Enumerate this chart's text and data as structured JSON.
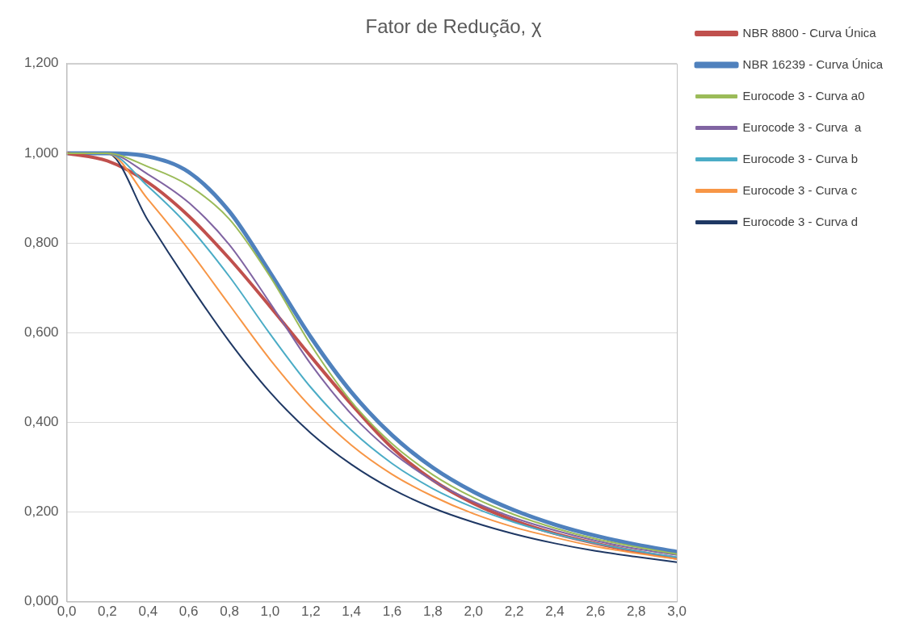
{
  "chart_data": {
    "type": "line",
    "title": "Fator de Redução, χ",
    "x": [
      0,
      0.2,
      0.4,
      0.6,
      0.8,
      1.0,
      1.2,
      1.4,
      1.6,
      1.8,
      2.0,
      2.2,
      2.4,
      2.6,
      2.8,
      3.0
    ],
    "series": [
      {
        "name": "NBR 8800 - Curva Única",
        "color": "#c0504d",
        "values": [
          1.0,
          0.983,
          0.935,
          0.86,
          0.765,
          0.658,
          0.547,
          0.44,
          0.343,
          0.271,
          0.219,
          0.181,
          0.152,
          0.13,
          0.112,
          0.097
        ]
      },
      {
        "name": "NBR 16239 - Curva Única",
        "color": "#4f81bd",
        "values": [
          1.0,
          1.0,
          0.993,
          0.958,
          0.87,
          0.734,
          0.59,
          0.467,
          0.371,
          0.299,
          0.245,
          0.204,
          0.172,
          0.147,
          0.127,
          0.111
        ]
      },
      {
        "name": "Eurocode 3 - Curva a0",
        "color": "#9bbb59",
        "values": [
          1.0,
          1.0,
          0.97,
          0.928,
          0.853,
          0.725,
          0.573,
          0.446,
          0.352,
          0.283,
          0.232,
          0.194,
          0.164,
          0.14,
          0.122,
          0.106
        ]
      },
      {
        "name": "Eurocode 3 - Curva  a",
        "color": "#8064a2",
        "values": [
          1.0,
          1.0,
          0.953,
          0.89,
          0.796,
          0.666,
          0.53,
          0.418,
          0.333,
          0.27,
          0.223,
          0.187,
          0.159,
          0.136,
          0.118,
          0.104
        ]
      },
      {
        "name": "Eurocode 3 - Curva b",
        "color": "#4bacc6",
        "values": [
          1.0,
          1.0,
          0.926,
          0.837,
          0.725,
          0.597,
          0.478,
          0.382,
          0.308,
          0.252,
          0.21,
          0.177,
          0.151,
          0.13,
          0.113,
          0.099
        ]
      },
      {
        "name": "Eurocode 3 - Curva c",
        "color": "#f79646",
        "values": [
          1.0,
          1.0,
          0.897,
          0.785,
          0.662,
          0.54,
          0.434,
          0.349,
          0.284,
          0.235,
          0.196,
          0.166,
          0.143,
          0.123,
          0.108,
          0.095
        ]
      },
      {
        "name": "Eurocode 3 - Curva d",
        "color": "#1f3864",
        "values": [
          1.0,
          1.0,
          0.85,
          0.71,
          0.58,
          0.467,
          0.376,
          0.306,
          0.251,
          0.209,
          0.177,
          0.151,
          0.13,
          0.113,
          0.1,
          0.088
        ]
      }
    ],
    "xlim": [
      0,
      3.0
    ],
    "xticks": [
      {
        "value": 0,
        "label": "0,0"
      },
      {
        "value": 0.2,
        "label": "0,2"
      },
      {
        "value": 0.4,
        "label": "0,4"
      },
      {
        "value": 0.6,
        "label": "0,6"
      },
      {
        "value": 0.8,
        "label": "0,8"
      },
      {
        "value": 1.0,
        "label": "1,0"
      },
      {
        "value": 1.2,
        "label": "1,2"
      },
      {
        "value": 1.4,
        "label": "1,4"
      },
      {
        "value": 1.6,
        "label": "1,6"
      },
      {
        "value": 1.8,
        "label": "1,8"
      },
      {
        "value": 2.0,
        "label": "2,0"
      },
      {
        "value": 2.2,
        "label": "2,2"
      },
      {
        "value": 2.4,
        "label": "2,4"
      },
      {
        "value": 2.6,
        "label": "2,6"
      },
      {
        "value": 2.8,
        "label": "2,8"
      },
      {
        "value": 3.0,
        "label": "3,0"
      }
    ],
    "ylim": [
      0,
      1.2
    ],
    "yticks": [
      {
        "value": 0,
        "label": "0,000"
      },
      {
        "value": 0.2,
        "label": "0,200"
      },
      {
        "value": 0.4,
        "label": "0,400"
      },
      {
        "value": 0.6,
        "label": "0,600"
      },
      {
        "value": 0.8,
        "label": "0,800"
      },
      {
        "value": 1.0,
        "label": "1,000"
      },
      {
        "value": 1.2,
        "label": "1,200"
      }
    ],
    "grid": "y",
    "legend": "right",
    "marker": "none",
    "line_style": "solid"
  }
}
